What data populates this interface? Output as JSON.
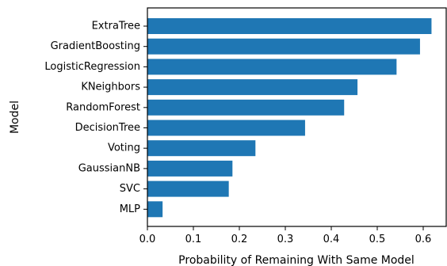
{
  "chart_data": {
    "type": "bar",
    "orientation": "horizontal",
    "title": "",
    "xlabel": "Probability of Remaining With Same Model",
    "ylabel": "Model",
    "xlim": [
      0,
      0.65
    ],
    "xticks": [
      "0.0",
      "0.1",
      "0.2",
      "0.3",
      "0.4",
      "0.5",
      "0.6"
    ],
    "categories": [
      "ExtraTree",
      "GradientBoosting",
      "LogisticRegression",
      "KNeighbors",
      "RandomForest",
      "DecisionTree",
      "Voting",
      "GaussianNB",
      "SVC",
      "MLP"
    ],
    "values": [
      0.618,
      0.593,
      0.542,
      0.457,
      0.428,
      0.343,
      0.235,
      0.185,
      0.177,
      0.033
    ],
    "grid": false,
    "legend": "none",
    "color": "#1f77b4"
  }
}
